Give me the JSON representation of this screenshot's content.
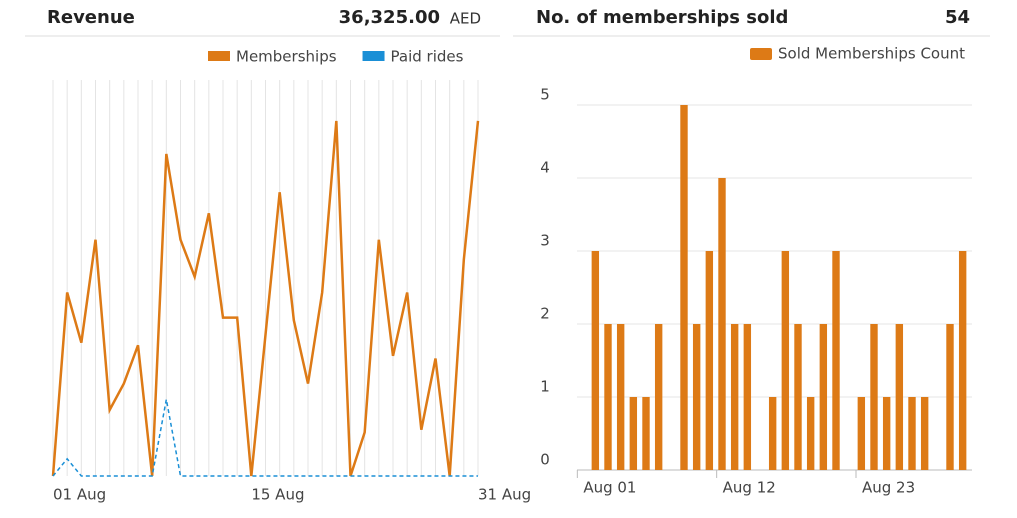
{
  "revenue_panel": {
    "title": "Revenue",
    "total": "36,325.00",
    "currency": "AED",
    "chart_data": {
      "type": "line",
      "categories": [
        "01 Aug",
        null,
        null,
        null,
        null,
        null,
        null,
        null,
        null,
        null,
        null,
        null,
        null,
        null,
        "15 Aug",
        null,
        null,
        null,
        null,
        null,
        null,
        null,
        null,
        null,
        null,
        null,
        null,
        null,
        null,
        null,
        "31 Aug"
      ],
      "series": [
        {
          "name": "Memberships",
          "color": "#dd7a16",
          "line_style": "solid",
          "values": [
            0,
            1390,
            1010,
            1790,
            500,
            700,
            990,
            0,
            2440,
            1790,
            1510,
            1990,
            1200,
            1200,
            0,
            1070,
            2150,
            1180,
            700,
            1390,
            2690,
            0,
            330,
            1790,
            910,
            1390,
            350,
            890,
            0,
            1640,
            2690
          ]
        },
        {
          "name": "Paid rides",
          "color": "#1a8fd6",
          "line_style": "dashed",
          "values": [
            0,
            130,
            0,
            0,
            0,
            0,
            0,
            0,
            580,
            0,
            0,
            0,
            0,
            0,
            0,
            0,
            0,
            0,
            0,
            0,
            0,
            0,
            0,
            0,
            0,
            0,
            0,
            0,
            0,
            0,
            0
          ]
        }
      ],
      "ylim": [
        0,
        3000
      ],
      "x_grid": true
    }
  },
  "memberships_panel": {
    "title": "No. of memberships sold",
    "total": 54,
    "chart_data": {
      "type": "bar",
      "categories": [
        "Aug 01",
        null,
        null,
        null,
        null,
        null,
        null,
        null,
        null,
        null,
        null,
        "Aug 12",
        null,
        null,
        null,
        null,
        null,
        null,
        null,
        null,
        null,
        null,
        "Aug 23",
        null,
        null,
        null,
        null,
        null,
        null,
        null
      ],
      "series": [
        {
          "name": "Sold Memberships Count",
          "color": "#dd7a16",
          "values": [
            3,
            2,
            2,
            1,
            1,
            2,
            0,
            5,
            2,
            3,
            4,
            2,
            2,
            0,
            1,
            3,
            2,
            1,
            2,
            3,
            0,
            1,
            2,
            1,
            2,
            1,
            1,
            0,
            2,
            3
          ]
        }
      ],
      "ylim": [
        0,
        5
      ],
      "yticks": [
        0,
        1,
        2,
        3,
        4,
        5
      ],
      "grid": true
    }
  }
}
